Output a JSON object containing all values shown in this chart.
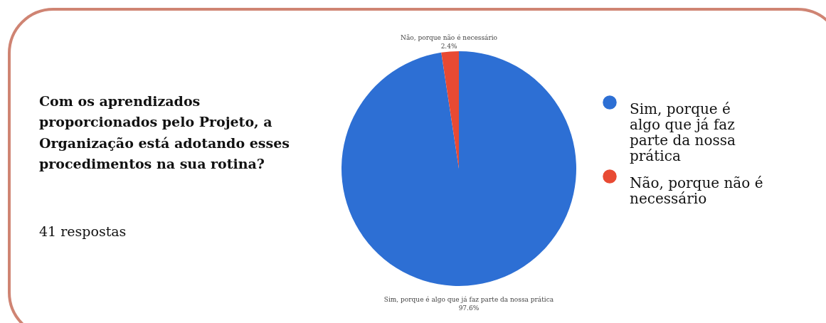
{
  "chart_data": {
    "type": "pie",
    "title": "Com os aprendizados proporcionados pelo Projeto, a Organização está adotando esses procedimentos na sua rotina?",
    "subtitle": "41 respostas",
    "categories": [
      "Sim, porque é algo que já faz parte da nossa prática",
      "Não, porque não é necessário"
    ],
    "values": [
      97.6,
      2.4
    ],
    "colors": [
      "#2d6fd4",
      "#e84a33"
    ],
    "value_labels": [
      "97.6%",
      "2.4%"
    ],
    "legend": "right"
  }
}
